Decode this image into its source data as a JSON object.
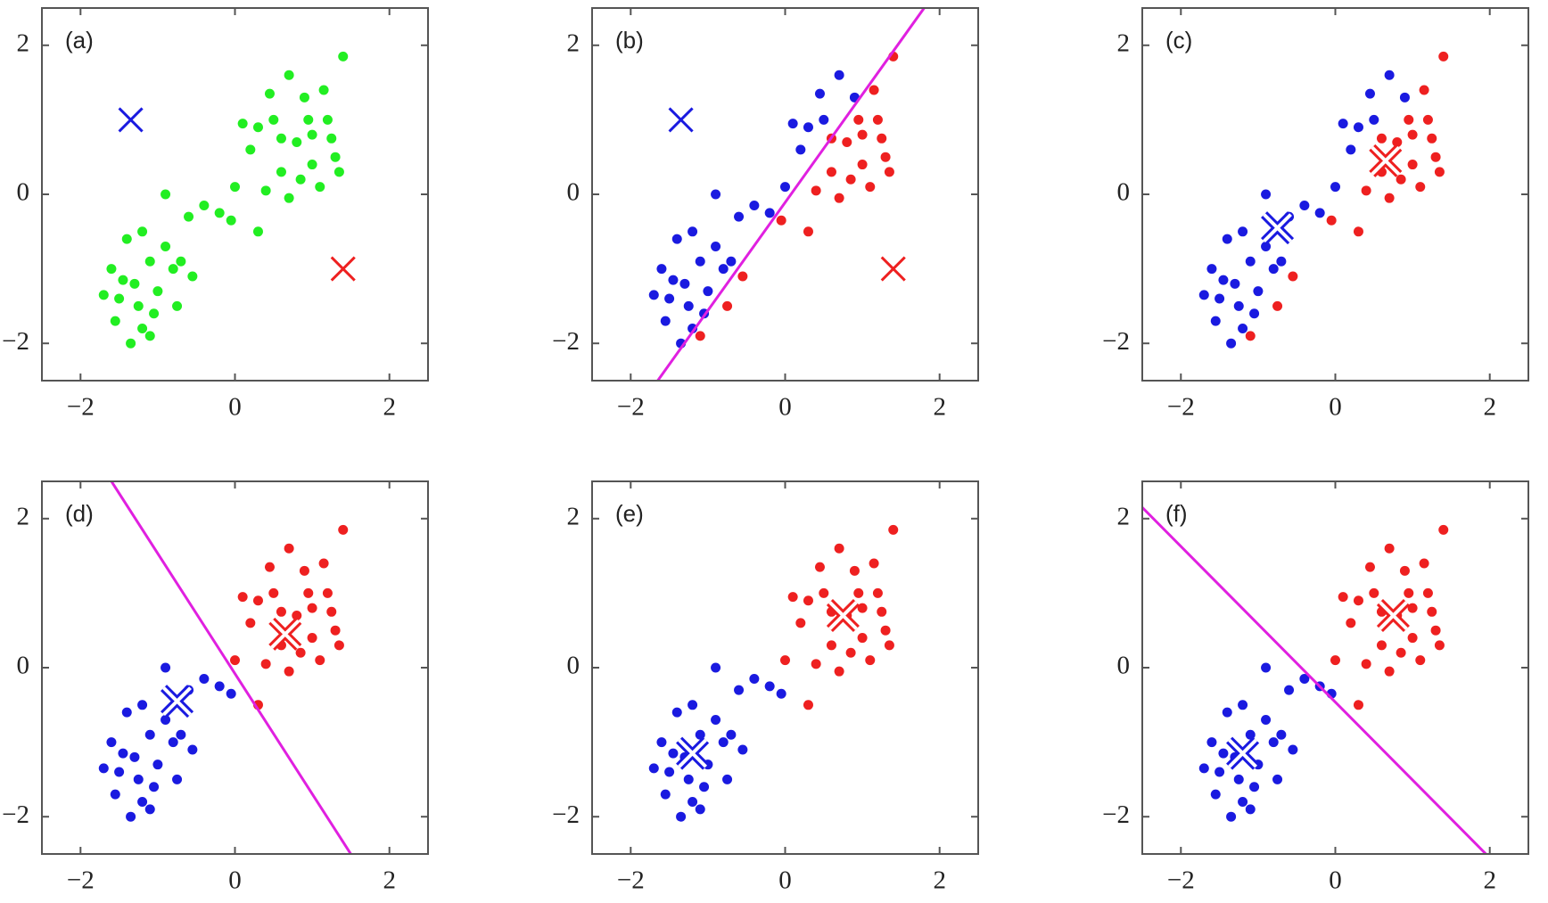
{
  "chart_data": [
    {
      "type": "scatter",
      "title": "(a)",
      "xlim": [
        -2.5,
        2.5
      ],
      "ylim": [
        -2.5,
        2.5
      ],
      "xticks": [
        {
          "value": -2,
          "label": "−2"
        },
        0,
        2
      ],
      "yticks": [
        {
          "value": -2,
          "label": "−2"
        },
        0,
        2
      ],
      "series": [
        {
          "color": "#22ee22",
          "x": [
            -1.3,
            -1.5,
            -1.2,
            -1.4,
            -1.1,
            -1.6,
            -1.25,
            -1.0,
            -1.35,
            -1.55,
            -0.9,
            -1.2,
            -1.05,
            -1.45,
            -0.8,
            -1.7,
            -0.75,
            -1.1,
            -0.9,
            -0.6,
            -0.4,
            -0.2,
            -0.05,
            0.3,
            -0.55,
            -0.7,
            0.0,
            0.8,
            0.5,
            1.0,
            0.6,
            1.2,
            0.3,
            0.9,
            1.4,
            0.7,
            0.2,
            1.1,
            0.4,
            1.3,
            0.6,
            1.0,
            0.85,
            0.45,
            1.15,
            0.1,
            1.35,
            0.7,
            0.95,
            1.25
          ],
          "y": [
            -1.2,
            -1.4,
            -1.8,
            -0.6,
            -0.9,
            -1.0,
            -1.5,
            -1.3,
            -2.0,
            -1.7,
            -0.7,
            -0.5,
            -1.6,
            -1.15,
            -1.0,
            -1.35,
            -1.5,
            -1.9,
            0.0,
            -0.3,
            -0.15,
            -0.25,
            -0.35,
            -0.5,
            -1.1,
            -0.9,
            0.1,
            0.7,
            1.0,
            0.4,
            0.3,
            1.0,
            0.9,
            1.3,
            1.85,
            1.6,
            0.6,
            0.1,
            0.05,
            0.5,
            0.75,
            0.8,
            0.2,
            1.35,
            1.4,
            0.95,
            0.3,
            -0.05,
            1.0,
            0.75
          ]
        }
      ],
      "centers": [
        {
          "x": -1.35,
          "y": 1.0,
          "color": "#1a1ae0",
          "highlight": false
        },
        {
          "x": 1.4,
          "y": -1.0,
          "color": "#ee2020",
          "highlight": false
        }
      ]
    },
    {
      "type": "scatter",
      "title": "(b)",
      "xlim": [
        -2.5,
        2.5
      ],
      "ylim": [
        -2.5,
        2.5
      ],
      "xticks": [
        {
          "value": -2,
          "label": "−2"
        },
        0,
        2
      ],
      "yticks": [
        {
          "value": -2,
          "label": "−2"
        },
        0,
        2
      ],
      "series": [
        {
          "color": "#1a1ae0",
          "x": [
            -1.3,
            -1.5,
            -1.2,
            -1.4,
            -1.1,
            -1.6,
            -1.25,
            -1.0,
            -1.35,
            -1.55,
            -0.9,
            -1.2,
            -1.05,
            -1.45,
            -0.8,
            -1.7,
            -0.9,
            -0.6,
            -0.4,
            -0.2,
            -0.7,
            0.0,
            0.5,
            0.3,
            0.9,
            0.7,
            0.2,
            0.45,
            0.1
          ],
          "y": [
            -1.2,
            -1.4,
            -1.8,
            -0.6,
            -0.9,
            -1.0,
            -1.5,
            -1.3,
            -2.0,
            -1.7,
            -0.7,
            -0.5,
            -1.6,
            -1.15,
            -1.0,
            -1.35,
            0.0,
            -0.3,
            -0.15,
            -0.25,
            -0.9,
            0.1,
            1.0,
            0.9,
            1.3,
            1.6,
            0.6,
            1.35,
            0.95
          ]
        },
        {
          "color": "#ee2020",
          "x": [
            -0.75,
            -1.1,
            -0.05,
            0.3,
            -0.55,
            0.8,
            1.0,
            0.6,
            1.2,
            1.4,
            1.1,
            0.4,
            1.3,
            0.6,
            1.0,
            0.85,
            1.15,
            1.35,
            0.7,
            0.95,
            1.25
          ],
          "y": [
            -1.5,
            -1.9,
            -0.35,
            -0.5,
            -1.1,
            0.7,
            0.4,
            0.3,
            1.0,
            1.85,
            0.1,
            0.05,
            0.5,
            0.75,
            0.8,
            0.2,
            1.4,
            0.3,
            -0.05,
            1.0,
            0.75
          ]
        }
      ],
      "line": {
        "x": [
          -1.65,
          1.8
        ],
        "y": [
          -2.5,
          2.5
        ],
        "color": "#e020e0"
      },
      "centers": [
        {
          "x": -1.35,
          "y": 1.0,
          "color": "#1a1ae0",
          "highlight": false
        },
        {
          "x": 1.4,
          "y": -1.0,
          "color": "#ee2020",
          "highlight": false
        }
      ]
    },
    {
      "type": "scatter",
      "title": "(c)",
      "xlim": [
        -2.5,
        2.5
      ],
      "ylim": [
        -2.5,
        2.5
      ],
      "xticks": [
        {
          "value": -2,
          "label": "−2"
        },
        0,
        2
      ],
      "yticks": [
        {
          "value": -2,
          "label": "−2"
        },
        0,
        2
      ],
      "series": [
        {
          "color": "#1a1ae0",
          "x": [
            -1.3,
            -1.5,
            -1.2,
            -1.4,
            -1.1,
            -1.6,
            -1.25,
            -1.0,
            -1.35,
            -1.55,
            -0.9,
            -1.2,
            -1.05,
            -1.45,
            -0.8,
            -1.7,
            -0.9,
            -0.6,
            -0.4,
            -0.2,
            -0.7,
            0.0,
            0.5,
            0.3,
            0.9,
            0.7,
            0.2,
            0.45,
            0.1
          ],
          "y": [
            -1.2,
            -1.4,
            -1.8,
            -0.6,
            -0.9,
            -1.0,
            -1.5,
            -1.3,
            -2.0,
            -1.7,
            -0.7,
            -0.5,
            -1.6,
            -1.15,
            -1.0,
            -1.35,
            0.0,
            -0.3,
            -0.15,
            -0.25,
            -0.9,
            0.1,
            1.0,
            0.9,
            1.3,
            1.6,
            0.6,
            1.35,
            0.95
          ]
        },
        {
          "color": "#ee2020",
          "x": [
            -0.75,
            -1.1,
            -0.05,
            0.3,
            -0.55,
            0.8,
            1.0,
            0.6,
            1.2,
            1.4,
            1.1,
            0.4,
            1.3,
            0.6,
            1.0,
            0.85,
            1.15,
            1.35,
            0.7,
            0.95,
            1.25
          ],
          "y": [
            -1.5,
            -1.9,
            -0.35,
            -0.5,
            -1.1,
            0.7,
            0.4,
            0.3,
            1.0,
            1.85,
            0.1,
            0.05,
            0.5,
            0.75,
            0.8,
            0.2,
            1.4,
            0.3,
            -0.05,
            1.0,
            0.75
          ]
        }
      ],
      "centers": [
        {
          "x": -0.75,
          "y": -0.45,
          "color": "#1a1ae0",
          "highlight": true
        },
        {
          "x": 0.65,
          "y": 0.45,
          "color": "#ee2020",
          "highlight": true
        }
      ]
    },
    {
      "type": "scatter",
      "title": "(d)",
      "xlim": [
        -2.5,
        2.5
      ],
      "ylim": [
        -2.5,
        2.5
      ],
      "xticks": [
        {
          "value": -2,
          "label": "−2"
        },
        0,
        2
      ],
      "yticks": [
        {
          "value": -2,
          "label": "−2"
        },
        0,
        2
      ],
      "series": [
        {
          "color": "#1a1ae0",
          "x": [
            -1.3,
            -1.5,
            -1.2,
            -1.4,
            -1.1,
            -1.6,
            -1.25,
            -1.0,
            -1.35,
            -1.55,
            -0.9,
            -1.2,
            -1.05,
            -1.45,
            -0.8,
            -1.7,
            -0.75,
            -1.1,
            -0.9,
            -0.6,
            -0.4,
            -0.2,
            -0.05,
            -0.55,
            -0.7
          ],
          "y": [
            -1.2,
            -1.4,
            -1.8,
            -0.6,
            -0.9,
            -1.0,
            -1.5,
            -1.3,
            -2.0,
            -1.7,
            -0.7,
            -0.5,
            -1.6,
            -1.15,
            -1.0,
            -1.35,
            -1.5,
            -1.9,
            0.0,
            -0.3,
            -0.15,
            -0.25,
            -0.35,
            -1.1,
            -0.9
          ]
        },
        {
          "color": "#ee2020",
          "x": [
            0.3,
            0.0,
            0.8,
            0.5,
            1.0,
            0.6,
            1.2,
            0.3,
            0.9,
            1.4,
            0.7,
            0.2,
            1.1,
            0.4,
            1.3,
            0.6,
            1.0,
            0.85,
            0.45,
            1.15,
            0.1,
            1.35,
            0.7,
            0.95,
            1.25
          ],
          "y": [
            -0.5,
            0.1,
            0.7,
            1.0,
            0.4,
            0.3,
            1.0,
            0.9,
            1.3,
            1.85,
            1.6,
            0.6,
            0.1,
            0.05,
            0.5,
            0.75,
            0.8,
            0.2,
            1.35,
            1.4,
            0.95,
            0.3,
            -0.05,
            1.0,
            0.75
          ]
        }
      ],
      "line": {
        "x": [
          -1.6,
          1.5
        ],
        "y": [
          2.5,
          -2.5
        ],
        "color": "#e020e0"
      },
      "centers": [
        {
          "x": -0.75,
          "y": -0.45,
          "color": "#1a1ae0",
          "highlight": true
        },
        {
          "x": 0.65,
          "y": 0.45,
          "color": "#ee2020",
          "highlight": true
        }
      ]
    },
    {
      "type": "scatter",
      "title": "(e)",
      "xlim": [
        -2.5,
        2.5
      ],
      "ylim": [
        -2.5,
        2.5
      ],
      "xticks": [
        {
          "value": -2,
          "label": "−2"
        },
        0,
        2
      ],
      "yticks": [
        {
          "value": -2,
          "label": "−2"
        },
        0,
        2
      ],
      "series": [
        {
          "color": "#1a1ae0",
          "x": [
            -1.3,
            -1.5,
            -1.2,
            -1.4,
            -1.1,
            -1.6,
            -1.25,
            -1.0,
            -1.35,
            -1.55,
            -0.9,
            -1.2,
            -1.05,
            -1.45,
            -0.8,
            -1.7,
            -0.75,
            -1.1,
            -0.9,
            -0.6,
            -0.4,
            -0.2,
            -0.05,
            -0.55,
            -0.7
          ],
          "y": [
            -1.2,
            -1.4,
            -1.8,
            -0.6,
            -0.9,
            -1.0,
            -1.5,
            -1.3,
            -2.0,
            -1.7,
            -0.7,
            -0.5,
            -1.6,
            -1.15,
            -1.0,
            -1.35,
            -1.5,
            -1.9,
            0.0,
            -0.3,
            -0.15,
            -0.25,
            -0.35,
            -1.1,
            -0.9
          ]
        },
        {
          "color": "#ee2020",
          "x": [
            0.3,
            0.0,
            0.8,
            0.5,
            1.0,
            0.6,
            1.2,
            0.3,
            0.9,
            1.4,
            0.7,
            0.2,
            1.1,
            0.4,
            1.3,
            0.6,
            1.0,
            0.85,
            0.45,
            1.15,
            0.1,
            1.35,
            0.7,
            0.95,
            1.25
          ],
          "y": [
            -0.5,
            0.1,
            0.7,
            1.0,
            0.4,
            0.3,
            1.0,
            0.9,
            1.3,
            1.85,
            1.6,
            0.6,
            0.1,
            0.05,
            0.5,
            0.75,
            0.8,
            0.2,
            1.35,
            1.4,
            0.95,
            0.3,
            -0.05,
            1.0,
            0.75
          ]
        }
      ],
      "centers": [
        {
          "x": -1.2,
          "y": -1.15,
          "color": "#1a1ae0",
          "highlight": true
        },
        {
          "x": 0.75,
          "y": 0.7,
          "color": "#ee2020",
          "highlight": true
        }
      ]
    },
    {
      "type": "scatter",
      "title": "(f)",
      "xlim": [
        -2.5,
        2.5
      ],
      "ylim": [
        -2.5,
        2.5
      ],
      "xticks": [
        {
          "value": -2,
          "label": "−2"
        },
        0,
        2
      ],
      "yticks": [
        {
          "value": -2,
          "label": "−2"
        },
        0,
        2
      ],
      "series": [
        {
          "color": "#1a1ae0",
          "x": [
            -1.3,
            -1.5,
            -1.2,
            -1.4,
            -1.1,
            -1.6,
            -1.25,
            -1.0,
            -1.35,
            -1.55,
            -0.9,
            -1.2,
            -1.05,
            -1.45,
            -0.8,
            -1.7,
            -0.75,
            -1.1,
            -0.9,
            -0.6,
            -0.4,
            -0.2,
            -0.05,
            -0.55,
            -0.7
          ],
          "y": [
            -1.2,
            -1.4,
            -1.8,
            -0.6,
            -0.9,
            -1.0,
            -1.5,
            -1.3,
            -2.0,
            -1.7,
            -0.7,
            -0.5,
            -1.6,
            -1.15,
            -1.0,
            -1.35,
            -1.5,
            -1.9,
            0.0,
            -0.3,
            -0.15,
            -0.25,
            -0.35,
            -1.1,
            -0.9
          ]
        },
        {
          "color": "#ee2020",
          "x": [
            0.3,
            0.0,
            0.8,
            0.5,
            1.0,
            0.6,
            1.2,
            0.3,
            0.9,
            1.4,
            0.7,
            0.2,
            1.1,
            0.4,
            1.3,
            0.6,
            1.0,
            0.85,
            0.45,
            1.15,
            0.1,
            1.35,
            0.7,
            0.95,
            1.25
          ],
          "y": [
            -0.5,
            0.1,
            0.7,
            1.0,
            0.4,
            0.3,
            1.0,
            0.9,
            1.3,
            1.85,
            1.6,
            0.6,
            0.1,
            0.05,
            0.5,
            0.75,
            0.8,
            0.2,
            1.35,
            1.4,
            0.95,
            0.3,
            -0.05,
            1.0,
            0.75
          ]
        }
      ],
      "line": {
        "x": [
          -2.5,
          1.95
        ],
        "y": [
          2.15,
          -2.5
        ],
        "color": "#e020e0"
      },
      "centers": [
        {
          "x": -1.2,
          "y": -1.15,
          "color": "#1a1ae0",
          "highlight": true
        },
        {
          "x": 0.75,
          "y": 0.7,
          "color": "#ee2020",
          "highlight": true
        }
      ]
    }
  ]
}
